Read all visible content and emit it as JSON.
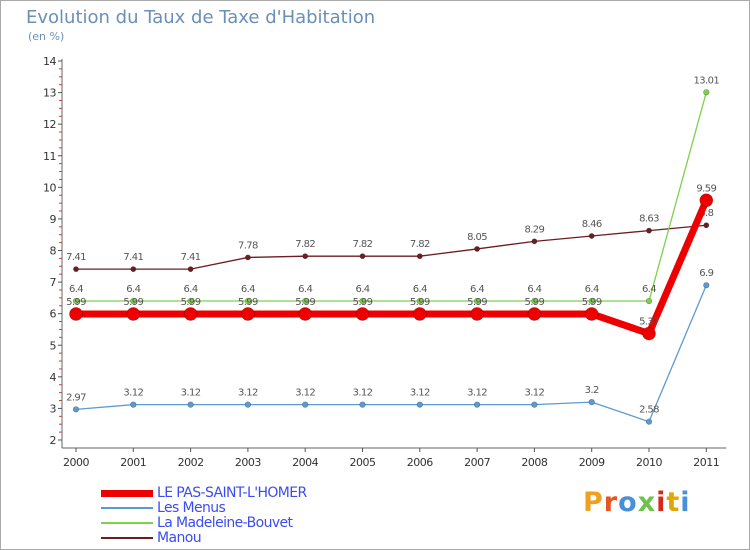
{
  "title": "Evolution du Taux de Taxe d'Habitation",
  "subtitle": "(en %)",
  "chart_data": {
    "type": "line",
    "title": "Evolution du Taux de Taxe d'Habitation",
    "ylabel": "(en %)",
    "xlabel": "",
    "x": [
      "2000",
      "2001",
      "2002",
      "2003",
      "2004",
      "2005",
      "2006",
      "2007",
      "2008",
      "2009",
      "2010",
      "2011"
    ],
    "ylim": [
      2,
      14
    ],
    "yticks": [
      2,
      3,
      4,
      5,
      6,
      7,
      8,
      9,
      10,
      11,
      12,
      13,
      14
    ],
    "grid": false,
    "legend_position": "bottom-left",
    "series": [
      {
        "name": "Manou",
        "color": "#6b1e22",
        "width": 1.3,
        "marker": 2.6,
        "values": [
          7.41,
          7.41,
          7.41,
          7.78,
          7.82,
          7.82,
          7.82,
          8.05,
          8.29,
          8.46,
          8.63,
          8.8
        ],
        "labels": [
          "7.41",
          "7.41",
          "7.41",
          "7.78",
          "7.82",
          "7.82",
          "7.82",
          "8.05",
          "8.29",
          "8.46",
          "8.63",
          "8.8"
        ]
      },
      {
        "name": "La Madeleine-Bouvet",
        "color": "#7fd04b",
        "width": 1.3,
        "marker": 2.8,
        "values": [
          6.4,
          6.4,
          6.4,
          6.4,
          6.4,
          6.4,
          6.4,
          6.4,
          6.4,
          6.4,
          6.4,
          13.01
        ],
        "labels": [
          "6.4",
          "6.4",
          "6.4",
          "6.4",
          "6.4",
          "6.4",
          "6.4",
          "6.4",
          "6.4",
          "6.4",
          "6.4",
          "13.01"
        ]
      },
      {
        "name": "Les Menus",
        "color": "#5c9bd1",
        "width": 1.3,
        "marker": 2.8,
        "values": [
          2.97,
          3.12,
          3.12,
          3.12,
          3.12,
          3.12,
          3.12,
          3.12,
          3.12,
          3.2,
          2.58,
          6.9
        ],
        "labels": [
          "2.97",
          "3.12",
          "3.12",
          "3.12",
          "3.12",
          "3.12",
          "3.12",
          "3.12",
          "3.12",
          "3.2",
          "2.58",
          "6.9"
        ]
      },
      {
        "name": "LE PAS-SAINT-L'HOMER",
        "color": "#ee0000",
        "width": 7,
        "marker": 6.5,
        "values": [
          5.99,
          5.99,
          5.99,
          5.99,
          5.99,
          5.99,
          5.99,
          5.99,
          5.99,
          5.99,
          5.37,
          9.59
        ],
        "labels": [
          "5.99",
          "5.99",
          "5.99",
          "5.99",
          "5.99",
          "5.99",
          "5.99",
          "5.99",
          "5.99",
          "5.99",
          "5.37",
          "9.59"
        ]
      }
    ]
  },
  "legend": [
    {
      "label": "LE PAS-SAINT-L'HOMER",
      "color": "#ee0000",
      "width": 7
    },
    {
      "label": "Les Menus",
      "color": "#5c9bd1",
      "width": 2
    },
    {
      "label": "La Madeleine-Bouvet",
      "color": "#7fd04b",
      "width": 2
    },
    {
      "label": "Manou",
      "color": "#6b1e22",
      "width": 2
    }
  ],
  "logo": {
    "text": "Proxiti",
    "colors": [
      "#f0a020",
      "#e8541e",
      "#4a90d9",
      "#6cc24a",
      "#d6291d",
      "#e0a800",
      "#4a90d9"
    ]
  }
}
